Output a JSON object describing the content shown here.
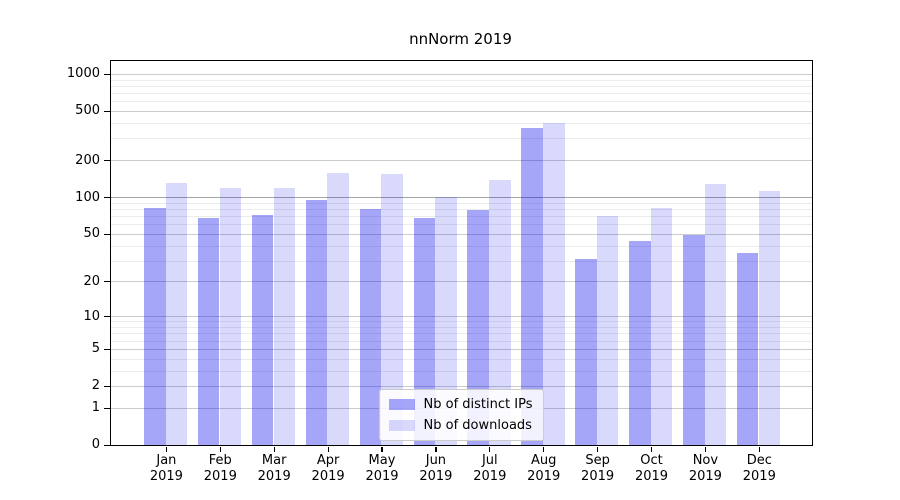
{
  "chart_data": {
    "type": "bar",
    "title": "nnNorm 2019",
    "categories": [
      "Jan",
      "Feb",
      "Mar",
      "Apr",
      "May",
      "Jun",
      "Jul",
      "Aug",
      "Sep",
      "Oct",
      "Nov",
      "Dec"
    ],
    "category_year": "2019",
    "series": [
      {
        "name": "Nb of distinct IPs",
        "color": "rgba(0,0,238,0.35)",
        "values": [
          81,
          67,
          71,
          94,
          80,
          67,
          78,
          367,
          31,
          44,
          49,
          35
        ]
      },
      {
        "name": "Nb of downloads",
        "color": "rgba(0,0,238,0.15)",
        "values": [
          131,
          118,
          119,
          156,
          153,
          100,
          137,
          403,
          70,
          81,
          127,
          113
        ]
      }
    ],
    "xlabel": "",
    "ylabel": "",
    "yscale": "log1p",
    "ylim": [
      0,
      1270
    ],
    "y_ticks": [
      0,
      1,
      2,
      5,
      10,
      20,
      50,
      100,
      200,
      500,
      1000
    ],
    "y_minor_ticks": [
      3,
      4,
      6,
      7,
      8,
      9,
      30,
      40,
      60,
      70,
      80,
      90,
      300,
      400,
      600,
      700,
      800,
      900
    ],
    "grid": "on",
    "legend_position": "lower center",
    "colors": {
      "major_grid": "#cccccc",
      "emph_grid_at_100": "#a5a5a5",
      "minor_grid": "#ececec",
      "spine": "#000000",
      "background": "#ffffff"
    }
  }
}
